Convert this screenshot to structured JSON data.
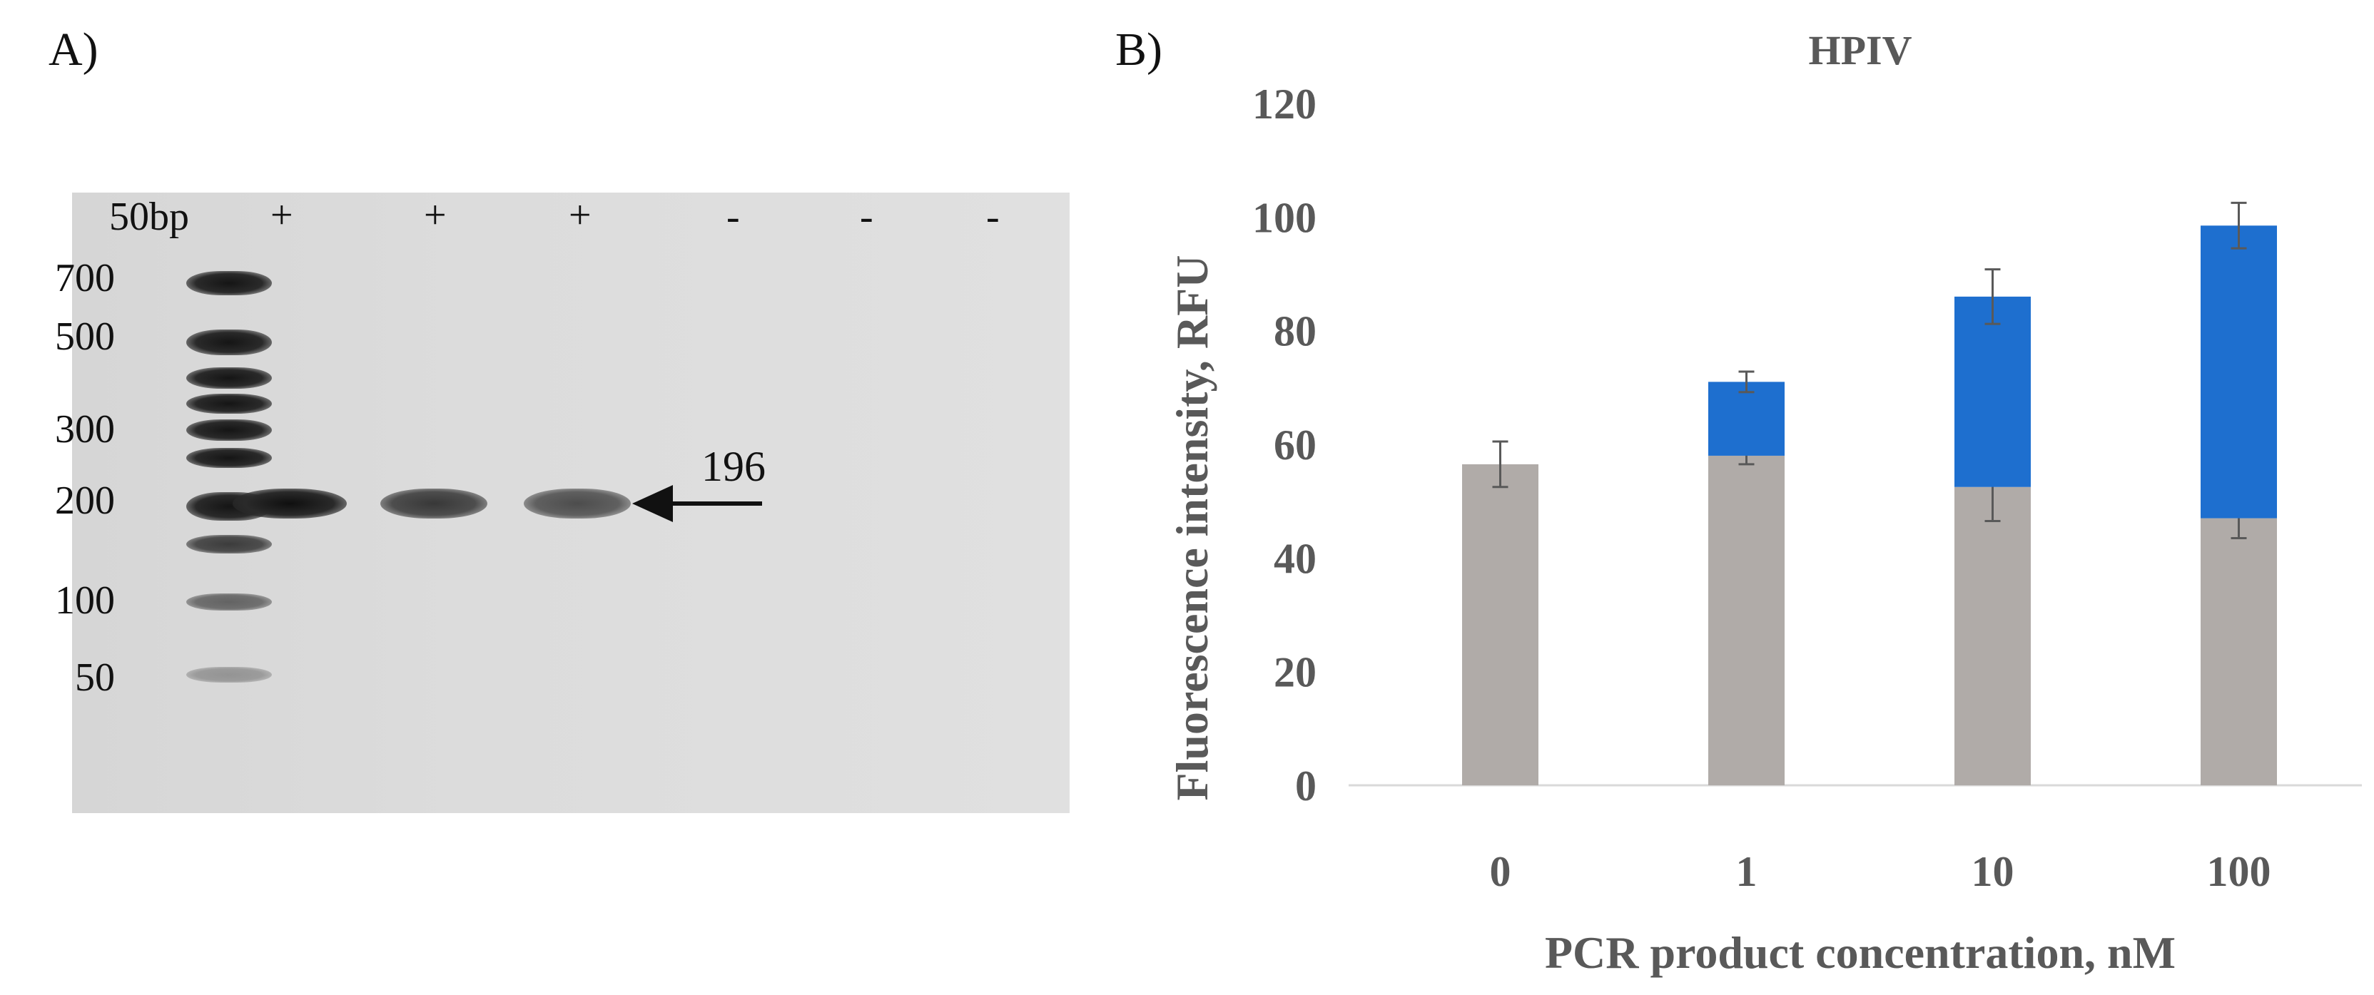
{
  "panels": {
    "a_label": "A)",
    "b_label": "B)"
  },
  "gel": {
    "lane_labels": [
      "50bp",
      "+",
      "+",
      "+",
      "-",
      "-",
      "-"
    ],
    "ladder_marker_labels": [
      "700",
      "500",
      "300",
      "200",
      "100",
      "50"
    ],
    "band_size_label": "196"
  },
  "chart_data": {
    "type": "bar",
    "stacked": true,
    "title": "HPIV",
    "xlabel": "PCR product concentration, nM",
    "ylabel": "Fluorescence intensity,  RFU",
    "categories": [
      "0",
      "1",
      "10",
      "100"
    ],
    "ylim": [
      0,
      120
    ],
    "yticks": [
      0,
      20,
      40,
      60,
      80,
      100,
      120
    ],
    "series": [
      {
        "values": [
          56.5,
          58,
          52.5,
          47
        ],
        "errors": [
          4,
          1.5,
          6,
          3.5
        ],
        "color": "#b0aba8"
      },
      {
        "values": [
          0,
          13,
          33.5,
          51.5
        ],
        "errors": [
          0,
          1.8,
          4.8,
          4
        ],
        "color": "#1e6fcf"
      }
    ],
    "grid": false,
    "legend": "none"
  }
}
